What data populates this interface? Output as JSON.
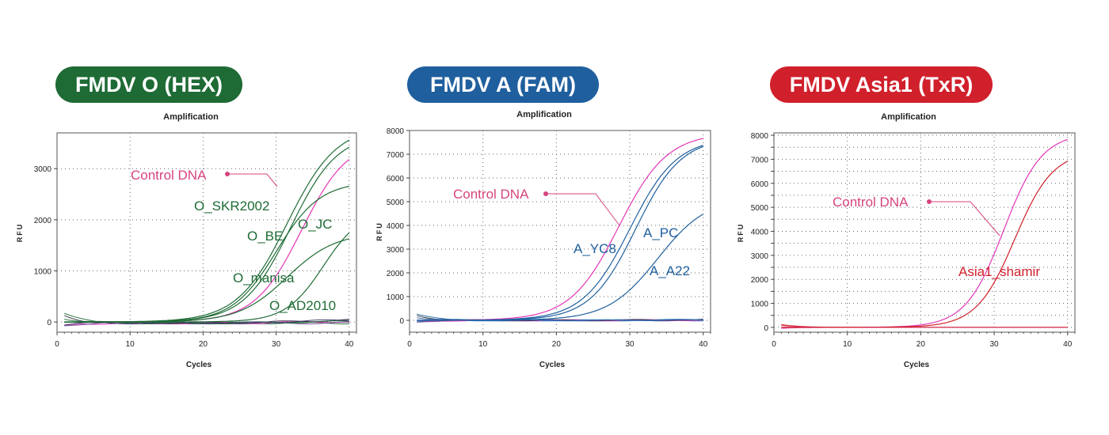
{
  "colors": {
    "hex": "#1e6b35",
    "fam": "#1f5f9e",
    "txr": "#d0202b",
    "control": "#e236b8",
    "control_label": "#d6447f",
    "grid": "#666666",
    "ntc_dark": "#2a2a3a"
  },
  "panels": [
    {
      "badge": "FMDV O (HEX)",
      "badge_color": "#1e6b35",
      "chart_data": {
        "type": "line",
        "title": "Amplification",
        "xlabel": "Cycles",
        "ylabel": "RFU",
        "xlim": [
          0,
          41
        ],
        "ylim": [
          -200,
          3700
        ],
        "xticks": [
          0,
          10,
          20,
          30,
          40
        ],
        "yticks": [
          0,
          1000,
          2000,
          3000
        ],
        "grid": true,
        "series": [
          {
            "name": "Control DNA",
            "color": "#e236b8",
            "plateau": 3600,
            "ct": 33.5,
            "slope": 3.2
          },
          {
            "name": "O_SKR2002",
            "color": "#1e6b35",
            "plateau": 3850,
            "ct": 31.5,
            "slope": 3.4
          },
          {
            "name": "O_JC",
            "color": "#1e6b35",
            "plateau": 3700,
            "ct": 32.0,
            "slope": 3.2
          },
          {
            "name": "O_BE",
            "color": "#1e6b35",
            "plateau": 2750,
            "ct": 30.0,
            "slope": 3.0
          },
          {
            "name": "O_manisa",
            "color": "#1e6b35",
            "plateau": 1750,
            "ct": 31.5,
            "slope": 3.3
          },
          {
            "name": "O_AD2010",
            "color": "#1e6b35",
            "plateau": 2200,
            "ct": 36.5,
            "slope": 2.6
          }
        ],
        "baseline_noise": true,
        "annotations": [
          {
            "text": "Control DNA",
            "color": "#d6447f",
            "series": "Control DNA"
          },
          {
            "text": "O_SKR2002",
            "color": "#1e6b35"
          },
          {
            "text": "O_JC",
            "color": "#1e6b35"
          },
          {
            "text": "O_BE",
            "color": "#1e6b35"
          },
          {
            "text": "O_manisa",
            "color": "#1e6b35"
          },
          {
            "text": "O_AD2010",
            "color": "#1e6b35"
          }
        ]
      }
    },
    {
      "badge": "FMDV A (FAM)",
      "badge_color": "#1f5f9e",
      "chart_data": {
        "type": "line",
        "title": "Amplification",
        "xlabel": "Cycles",
        "ylabel": "RFU",
        "xlim": [
          0,
          41
        ],
        "ylim": [
          -500,
          8000
        ],
        "xticks": [
          0,
          10,
          20,
          30,
          40
        ],
        "yticks": [
          0,
          1000,
          2000,
          3000,
          4000,
          5000,
          6000,
          7000,
          8000
        ],
        "grid": true,
        "series": [
          {
            "name": "Control DNA",
            "color": "#e236b8",
            "plateau": 7900,
            "ct": 28.5,
            "slope": 3.3
          },
          {
            "name": "A_YC8",
            "color": "#1f5f9e",
            "plateau": 7700,
            "ct": 30.0,
            "slope": 3.2
          },
          {
            "name": "A_PC",
            "color": "#1f5f9e",
            "plateau": 7700,
            "ct": 30.8,
            "slope": 3.1
          },
          {
            "name": "A_A22",
            "color": "#1f5f9e",
            "plateau": 5200,
            "ct": 33.8,
            "slope": 3.4
          }
        ],
        "baseline_noise": true,
        "annotations": [
          {
            "text": "Control DNA",
            "color": "#d6447f",
            "series": "Control DNA"
          },
          {
            "text": "A_YC8",
            "color": "#1f5f9e"
          },
          {
            "text": "A_PC",
            "color": "#1f5f9e"
          },
          {
            "text": "A_A22",
            "color": "#1f5f9e"
          }
        ]
      }
    },
    {
      "badge": "FMDV Asia1 (TxR)",
      "badge_color": "#d0202b",
      "chart_data": {
        "type": "line",
        "title": "Amplification",
        "xlabel": "Cycles",
        "ylabel": "RFU",
        "xlim": [
          0,
          41
        ],
        "ylim": [
          -200,
          8100
        ],
        "xticks": [
          0,
          10,
          20,
          30,
          40
        ],
        "yticks": [
          0,
          500,
          1000,
          1500,
          2000,
          2500,
          3000,
          3500,
          4000,
          4500,
          5000,
          5500,
          6000,
          6500,
          7000,
          7500,
          8000
        ],
        "ytick_labels": [
          "0",
          "1000",
          "2000",
          "3000",
          "4000",
          "5000",
          "6000",
          "7000",
          "8000"
        ],
        "grid": true,
        "series": [
          {
            "name": "Control DNA",
            "color": "#e236b8",
            "plateau": 8100,
            "ct": 31.3,
            "slope": 2.6
          },
          {
            "name": "Asia1_shamir",
            "color": "#d0202b",
            "plateau": 7350,
            "ct": 32.8,
            "slope": 2.6
          }
        ],
        "baseline_noise": true,
        "annotations": [
          {
            "text": "Control DNA",
            "color": "#d6447f",
            "series": "Control DNA"
          },
          {
            "text": "Asia1_shamir",
            "color": "#d0202b"
          }
        ]
      }
    }
  ]
}
